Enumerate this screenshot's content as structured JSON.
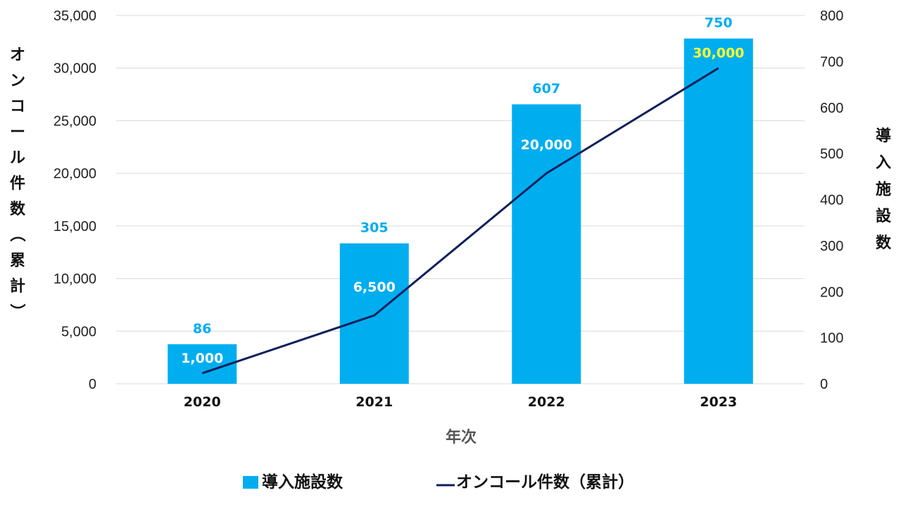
{
  "chart_data": {
    "type": "bar+line",
    "categories": [
      "2020",
      "2021",
      "2022",
      "2023"
    ],
    "series": [
      {
        "name": "導入施設数",
        "type": "bar",
        "axis": "right",
        "values": [
          86,
          305,
          607,
          750
        ],
        "value_labels": [
          "86",
          "305",
          "607",
          "750"
        ],
        "color": "#00AEEF"
      },
      {
        "name": "オンコール件数（累計）",
        "type": "line",
        "axis": "left",
        "values": [
          1000,
          6500,
          20000,
          30000
        ],
        "value_labels": [
          "1,000",
          "6,500",
          "20,000",
          "30,000"
        ],
        "color": "#0D1F5C"
      }
    ],
    "xlabel": "年次",
    "ylabel_left": "オンコール件数（累計）",
    "ylabel_right": "導入施設数",
    "ylim_left": [
      0,
      35000
    ],
    "ylim_right": [
      0,
      800
    ],
    "left_ticks": [
      "0",
      "5,000",
      "10,000",
      "15,000",
      "20,000",
      "25,000",
      "30,000",
      "35,000"
    ],
    "right_ticks": [
      "0",
      "100",
      "200",
      "300",
      "400",
      "500",
      "600",
      "700",
      "800"
    ],
    "grid": true,
    "legend_position": "bottom",
    "colors": {
      "bar_label": "#00AEEF",
      "line_label_default": "#FFFFFF",
      "line_label_highlight": "#FFFF33",
      "grid": "#D9D9D9"
    }
  }
}
